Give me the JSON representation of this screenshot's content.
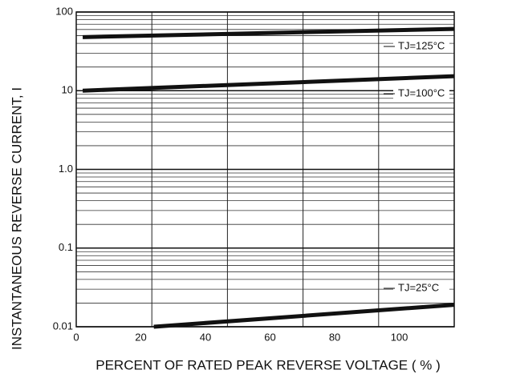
{
  "chart_data": {
    "type": "line",
    "ylabel": "INSTANTANEOUS REVERSE CURRENT, I",
    "xlabel": "PERCENT OF RATED PEAK REVERSE VOLTAGE ( % )",
    "xlim": [
      0,
      117
    ],
    "xticks": [
      0,
      20,
      40,
      60,
      80,
      100
    ],
    "ylim": [
      0.01,
      100
    ],
    "log_y": true,
    "grid": true,
    "minor_grid": true,
    "yticks": [
      0.01,
      0.1,
      {
        "value": 1,
        "label": "1.0"
      },
      10,
      100
    ],
    "series": [
      {
        "name": "TJ=125°C",
        "color": "#111111",
        "x": [
          2,
          117
        ],
        "values": [
          48,
          61
        ]
      },
      {
        "name": "TJ=100°C",
        "color": "#111111",
        "x": [
          2,
          117
        ],
        "values": [
          10,
          15.3
        ]
      },
      {
        "name": "TJ=25°C",
        "color": "#111111",
        "x": [
          24,
          117
        ],
        "values": [
          0.01,
          0.019
        ]
      }
    ]
  }
}
